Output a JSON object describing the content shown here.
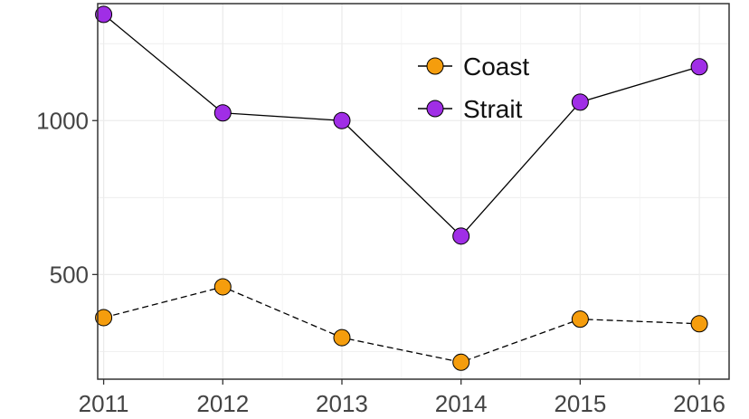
{
  "chart_data": {
    "type": "line",
    "title": "",
    "xlabel": "",
    "ylabel": "",
    "x": [
      2011,
      2012,
      2013,
      2014,
      2015,
      2016
    ],
    "x_tick_labels": [
      "2011",
      "2012",
      "2013",
      "2014",
      "2015",
      "2016"
    ],
    "y_ticks": [
      500,
      1000
    ],
    "y_tick_labels": [
      "500",
      "1000"
    ],
    "xlim": [
      2010.95,
      2016.25
    ],
    "ylim": [
      160,
      1380
    ],
    "grid": true,
    "legend_position": "top-center",
    "series": [
      {
        "name": "Coast",
        "values": [
          360,
          460,
          295,
          215,
          355,
          340
        ],
        "color": "#f59d0d",
        "line_style": "dashed"
      },
      {
        "name": "Strait",
        "values": [
          1345,
          1025,
          1000,
          625,
          1060,
          1175
        ],
        "color": "#a02ee6",
        "line_style": "solid"
      }
    ]
  }
}
